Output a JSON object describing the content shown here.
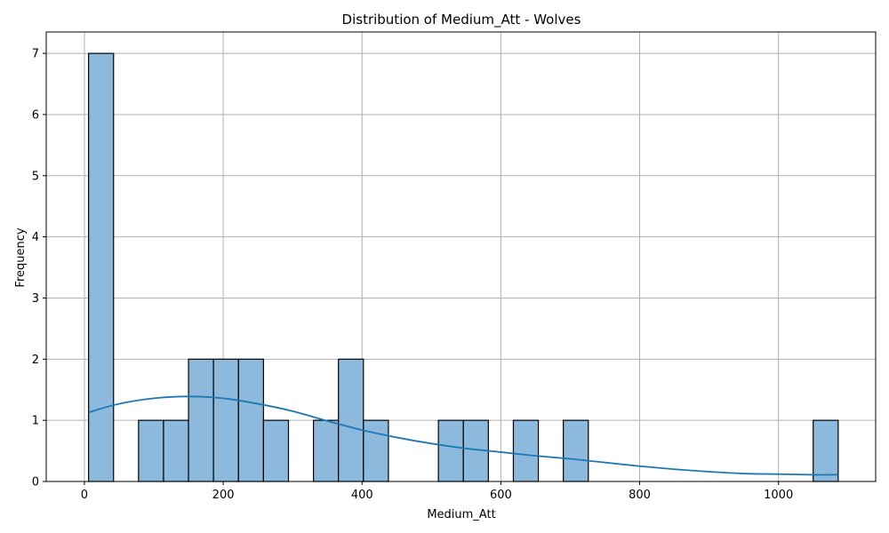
{
  "chart_data": {
    "type": "bar",
    "title": "Distribution of Medium_Att - Wolves",
    "xlabel": "Medium_Att",
    "ylabel": "Frequency",
    "xlim": [
      -55,
      1140
    ],
    "ylim": [
      0,
      7.35
    ],
    "xticks": [
      0,
      200,
      400,
      600,
      800,
      1000
    ],
    "yticks": [
      0,
      1,
      2,
      3,
      4,
      5,
      6,
      7
    ],
    "grid": true,
    "bin_edges": [
      6,
      42,
      78,
      114,
      150,
      186,
      222,
      258,
      294,
      330,
      366,
      402,
      438,
      474,
      510,
      546,
      582,
      618,
      654,
      690,
      726,
      762,
      798,
      834,
      870,
      906,
      942,
      978,
      1014,
      1050,
      1086
    ],
    "counts": [
      7,
      0,
      1,
      1,
      2,
      2,
      2,
      1,
      0,
      1,
      2,
      1,
      0,
      0,
      1,
      1,
      0,
      1,
      0,
      1,
      0,
      0,
      0,
      0,
      0,
      0,
      0,
      0,
      0,
      1
    ],
    "kde": {
      "x": [
        6,
        50,
        100,
        150,
        200,
        250,
        300,
        350,
        400,
        450,
        500,
        550,
        600,
        650,
        700,
        750,
        800,
        850,
        900,
        950,
        1000,
        1050,
        1086
      ],
      "y": [
        1.13,
        1.27,
        1.36,
        1.39,
        1.36,
        1.27,
        1.15,
        0.99,
        0.84,
        0.72,
        0.62,
        0.54,
        0.48,
        0.42,
        0.37,
        0.31,
        0.25,
        0.2,
        0.16,
        0.13,
        0.12,
        0.11,
        0.11
      ]
    },
    "colors": {
      "bar_fill": "#8cb9dc",
      "bar_edge": "#000000",
      "kde_line": "#1f77b4",
      "grid": "#b0b0b0"
    }
  }
}
